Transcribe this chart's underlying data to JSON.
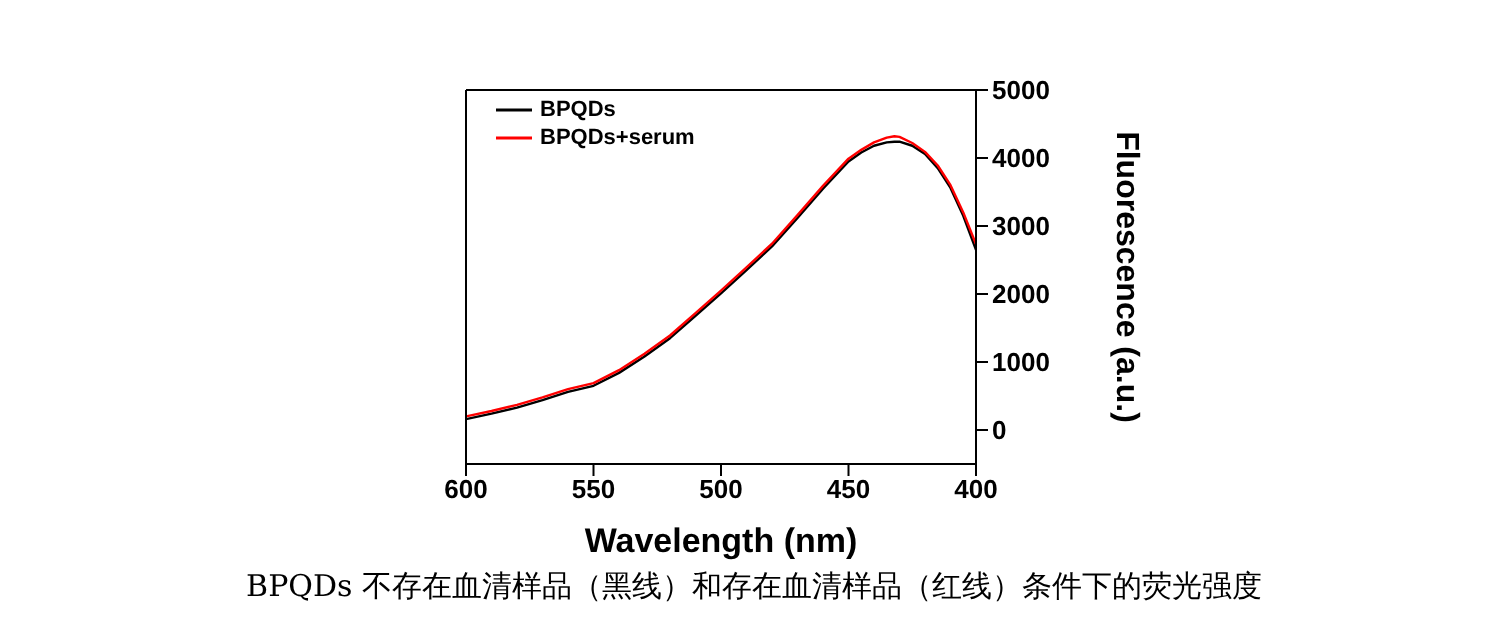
{
  "chart_data": {
    "type": "line",
    "xlabel": "Wavelength (nm)",
    "ylabel": "Fluorescence (a.u.)",
    "xlim": [
      600,
      400
    ],
    "xticks": [
      600,
      550,
      500,
      450,
      400
    ],
    "ylim": [
      -500,
      5000
    ],
    "yticks": [
      0,
      1000,
      2000,
      3000,
      4000,
      5000
    ],
    "x": [
      600,
      590,
      580,
      570,
      560,
      550,
      540,
      530,
      520,
      510,
      500,
      490,
      480,
      470,
      460,
      450,
      445,
      440,
      435,
      432,
      430,
      425,
      420,
      415,
      410,
      405,
      400
    ],
    "series": [
      {
        "name": "BPQDs",
        "color": "#000000",
        "values": [
          160,
          240,
          330,
          440,
          560,
          650,
          840,
          1080,
          1350,
          1680,
          2010,
          2350,
          2700,
          3120,
          3550,
          3950,
          4080,
          4180,
          4230,
          4240,
          4240,
          4180,
          4060,
          3850,
          3560,
          3150,
          2650
        ]
      },
      {
        "name": "BPQDs+serum",
        "color": "#ff0000",
        "values": [
          200,
          280,
          370,
          480,
          600,
          690,
          880,
          1120,
          1390,
          1720,
          2050,
          2390,
          2740,
          3160,
          3590,
          3990,
          4120,
          4230,
          4300,
          4320,
          4310,
          4220,
          4090,
          3890,
          3600,
          3200,
          2730
        ]
      }
    ],
    "legend": "top left",
    "grid": false,
    "marker": "none",
    "line_style": "solid",
    "annotations": [
      "BPQDs 不存在血清样品（黑线）和存在血清样品（红线）条件下的荧光强度"
    ]
  }
}
